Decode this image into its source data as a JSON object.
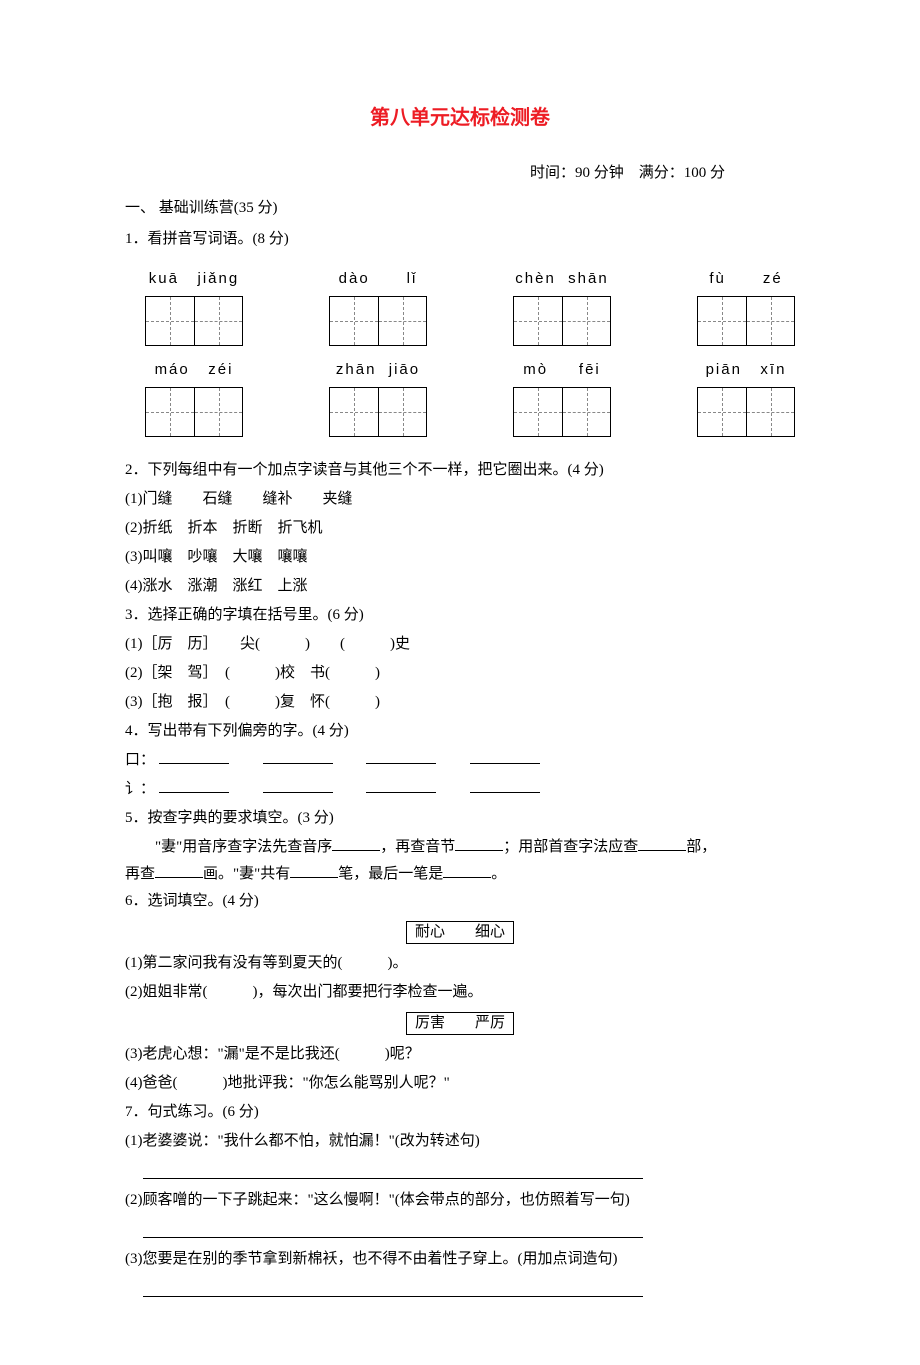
{
  "title": "第八单元达标检测卷",
  "meta": "时间：90 分钟　满分：100 分",
  "s1_hdr": "一、 基础训练营(35 分)",
  "q1": "1．看拼音写词语。(8 分)",
  "pinyin_row1": [
    {
      "p": "kuā   jiǎng"
    },
    {
      "p": "dào      lǐ"
    },
    {
      "p": "chèn  shān"
    },
    {
      "p": "fù      zé"
    }
  ],
  "pinyin_row2": [
    {
      "p": "máo   zéi"
    },
    {
      "p": "zhān  jiāo"
    },
    {
      "p": "mò     fēi"
    },
    {
      "p": "piān   xīn"
    }
  ],
  "q2": "2．下列每组中有一个加点字读音与其他三个不一样，把它圈出来。(4 分)",
  "q2_1": "(1)门缝　　石缝　　缝补　　夹缝",
  "q2_2": "(2)折纸　折本　折断　折飞机",
  "q2_3": "(3)叫嚷　吵嚷　大嚷　嚷嚷",
  "q2_4": "(4)涨水　涨潮　涨红　上涨",
  "q3": "3．选择正确的字填在括号里。(6 分)",
  "q3_1": "(1)［厉　历］　　尖(　　　)　　(　　　)史",
  "q3_2": "(2)［架　驾］　(　　　)校　书(　　　)",
  "q3_3": "(3)［抱　报］　(　　　)复　怀(　　　)",
  "q4": "4．写出带有下列偏旁的字。(4 分)",
  "q4_r1": "口：",
  "q4_r2": "讠：",
  "q5": "5．按查字典的要求填空。(3 分)",
  "q5_body_a": "　　\"妻\"用音序查字法先查音序",
  "q5_body_b": "，再查音节",
  "q5_body_c": "；用部首查字法应查",
  "q5_body_d": "部，",
  "q5_line2_a": "再查",
  "q5_line2_b": "画。\"妻\"共有",
  "q5_line2_c": "笔，最后一笔是",
  "q5_line2_d": "。",
  "q6": "6．选词填空。(4 分)",
  "q6_opts1": "耐心　　细心",
  "q6_1": "(1)第二家问我有没有等到夏天的(　　　)。",
  "q6_2": "(2)姐姐非常(　　　)，每次出门都要把行李检查一遍。",
  "q6_opts2": "厉害　　严厉",
  "q6_3": "(3)老虎心想：\"漏\"是不是比我还(　　　)呢？",
  "q6_4": "(4)爸爸(　　　)地批评我：\"你怎么能骂别人呢？\"",
  "q7": "7．句式练习。(6 分)",
  "q7_1": "(1)老婆婆说：\"我什么都不怕，就怕漏！\"(改为转述句)",
  "q7_2": "(2)顾客噌的一下子跳起来：\"这么慢啊！\"(体会带点的部分，也仿照着写一句)",
  "q7_3": "(3)您要是在别的季节拿到新棉袄，也不得不由着性子穿上。(用加点词造句)"
}
